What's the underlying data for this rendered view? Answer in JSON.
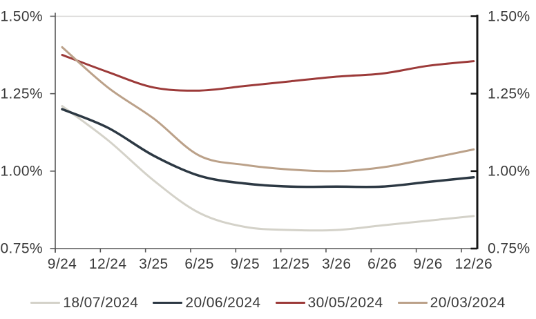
{
  "chart_data": {
    "type": "line",
    "title": "",
    "categories": [
      "9/24",
      "12/24",
      "3/25",
      "6/25",
      "9/25",
      "12/25",
      "3/26",
      "6/26",
      "9/26",
      "12/26"
    ],
    "y_tick_labels": [
      "1.50%",
      "1.25%",
      "1.00%",
      "0.75%"
    ],
    "y_tick_values": [
      1.5,
      1.25,
      1.0,
      0.75
    ],
    "ylim": [
      0.75,
      1.5
    ],
    "y_axis_sides": "both",
    "grid": "top border line only",
    "legend_position": "bottom",
    "series": [
      {
        "name": "18/07/2024",
        "color": "#d4d2c9",
        "values": [
          1.21,
          1.1,
          0.97,
          0.865,
          0.82,
          0.81,
          0.81,
          0.825,
          0.84,
          0.855
        ]
      },
      {
        "name": "20/06/2024",
        "color": "#2c3843",
        "values": [
          1.2,
          1.14,
          1.05,
          0.985,
          0.96,
          0.95,
          0.95,
          0.95,
          0.965,
          0.98
        ]
      },
      {
        "name": "30/05/2024",
        "color": "#9c3a39",
        "values": [
          1.375,
          1.32,
          1.27,
          1.26,
          1.275,
          1.29,
          1.305,
          1.315,
          1.34,
          1.355
        ]
      },
      {
        "name": "20/03/2024",
        "color": "#bba189",
        "values": [
          1.4,
          1.27,
          1.17,
          1.05,
          1.02,
          1.005,
          1.0,
          1.012,
          1.04,
          1.07
        ]
      }
    ],
    "colors": {
      "left_bottom_axis": "#565656",
      "right_axis": "#161616",
      "top_gridline": "#d3d1d0",
      "label_text": "#3a3a3a"
    }
  }
}
